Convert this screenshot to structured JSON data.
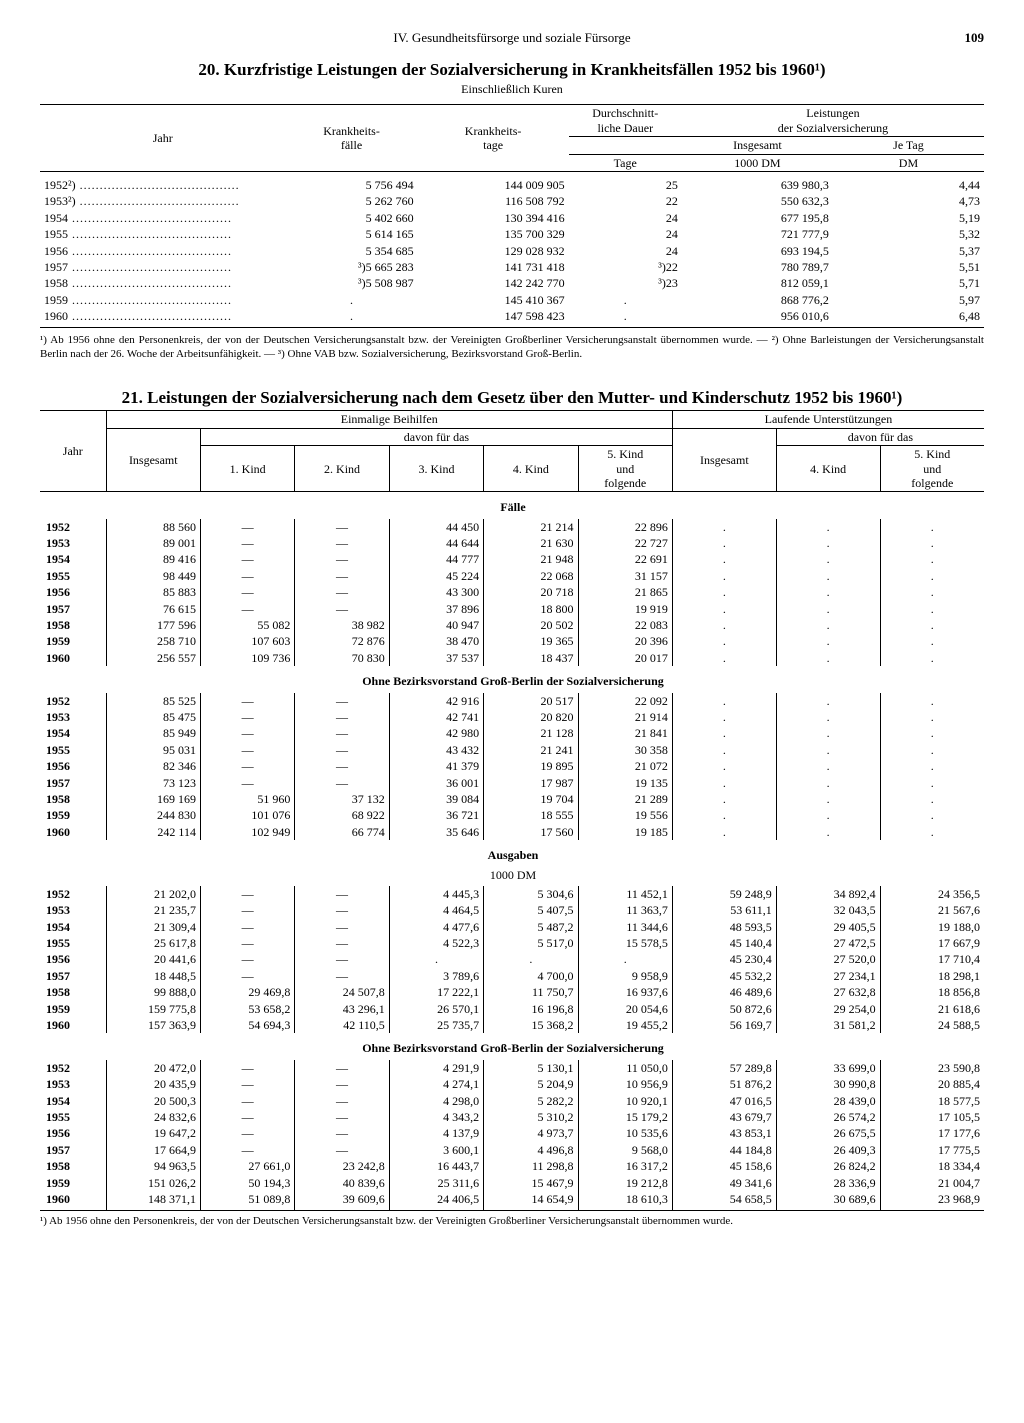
{
  "header": {
    "section": "IV. Gesundheitsfürsorge und soziale Fürsorge",
    "page": "109"
  },
  "table20": {
    "title": "20. Kurzfristige Leistungen der Sozialversicherung in Krankheitsfällen 1952 bis 1960¹)",
    "subtitle": "Einschließlich Kuren",
    "head": {
      "jahr": "Jahr",
      "faelle": "Krankheits-\nfälle",
      "tage": "Krankheits-\ntage",
      "dauer_group": "Durchschnitt-\nliche Dauer",
      "dauer_unit": "Tage",
      "leist_group": "Leistungen\nder Sozialversicherung",
      "insgesamt": "Insgesamt",
      "je_tag": "Je Tag",
      "insgesamt_unit": "1000 DM",
      "je_tag_unit": "DM"
    },
    "rows": [
      {
        "jahr": "1952²)",
        "faelle": "5 756 494",
        "tage": "144 009 905",
        "dauer": "25",
        "ins": "639 980,3",
        "je": "4,44"
      },
      {
        "jahr": "1953²)",
        "faelle": "5 262 760",
        "tage": "116 508 792",
        "dauer": "22",
        "ins": "550 632,3",
        "je": "4,73"
      },
      {
        "jahr": "1954",
        "faelle": "5 402 660",
        "tage": "130 394 416",
        "dauer": "24",
        "ins": "677 195,8",
        "je": "5,19"
      },
      {
        "jahr": "1955",
        "faelle": "5 614 165",
        "tage": "135 700 329",
        "dauer": "24",
        "ins": "721 777,9",
        "je": "5,32"
      },
      {
        "jahr": "1956",
        "faelle": "5 354 685",
        "tage": "129 028 932",
        "dauer": "24",
        "ins": "693 194,5",
        "je": "5,37"
      },
      {
        "jahr": "1957",
        "faelle": "³)5 665 283",
        "tage": "141 731 418",
        "dauer": "³)22",
        "ins": "780 789,7",
        "je": "5,51"
      },
      {
        "jahr": "1958",
        "faelle": "³)5 508 987",
        "tage": "142 242 770",
        "dauer": "³)23",
        "ins": "812 059,1",
        "je": "5,71"
      },
      {
        "jahr": "1959",
        "faelle": ".",
        "tage": "145 410 367",
        "dauer": ".",
        "ins": "868 776,2",
        "je": "5,97"
      },
      {
        "jahr": "1960",
        "faelle": ".",
        "tage": "147 598 423",
        "dauer": ".",
        "ins": "956 010,6",
        "je": "6,48"
      }
    ],
    "footnote": "¹) Ab 1956 ohne den Personenkreis, der von der Deutschen Versicherungsanstalt bzw. der Vereinigten Großberliner Versicherungsanstalt übernommen wurde. — ²) Ohne Barleistungen der Versicherungsanstalt Berlin nach der 26. Woche der Arbeitsunfähigkeit. — ³) Ohne VAB bzw. Sozialversicherung, Bezirksvorstand Groß-Berlin."
  },
  "table21": {
    "title": "21. Leistungen der Sozialversicherung nach dem Gesetz über den Mutter- und Kinderschutz 1952 bis 1960¹)",
    "head": {
      "jahr": "Jahr",
      "einmalig": "Einmalige Beihilfen",
      "laufend": "Laufende Unterstützungen",
      "davon": "davon für das",
      "insgesamt": "Insgesamt",
      "k1": "1. Kind",
      "k2": "2. Kind",
      "k3": "3. Kind",
      "k4": "4. Kind",
      "k5": "5. Kind\nund\nfolgende"
    },
    "sections": {
      "faelle": "Fälle",
      "ohne": "Ohne Bezirksvorstand Groß-Berlin der Sozialversicherung",
      "ausgaben": "Ausgaben",
      "ausgaben_unit": "1000 DM"
    },
    "faelle_a": [
      {
        "j": "1952",
        "i": "88 560",
        "k1": "—",
        "k2": "—",
        "k3": "44 450",
        "k4": "21 214",
        "k5": "22 896",
        "li": ".",
        "lk4": ".",
        "lk5": "."
      },
      {
        "j": "1953",
        "i": "89 001",
        "k1": "—",
        "k2": "—",
        "k3": "44 644",
        "k4": "21 630",
        "k5": "22 727",
        "li": ".",
        "lk4": ".",
        "lk5": "."
      },
      {
        "j": "1954",
        "i": "89 416",
        "k1": "—",
        "k2": "—",
        "k3": "44 777",
        "k4": "21 948",
        "k5": "22 691",
        "li": ".",
        "lk4": ".",
        "lk5": "."
      },
      {
        "j": "1955",
        "i": "98 449",
        "k1": "—",
        "k2": "—",
        "k3": "45 224",
        "k4": "22 068",
        "k5": "31 157",
        "li": ".",
        "lk4": ".",
        "lk5": "."
      },
      {
        "j": "1956",
        "i": "85 883",
        "k1": "—",
        "k2": "—",
        "k3": "43 300",
        "k4": "20 718",
        "k5": "21 865",
        "li": ".",
        "lk4": ".",
        "lk5": "."
      },
      {
        "j": "1957",
        "i": "76 615",
        "k1": "—",
        "k2": "—",
        "k3": "37 896",
        "k4": "18 800",
        "k5": "19 919",
        "li": ".",
        "lk4": ".",
        "lk5": "."
      },
      {
        "j": "1958",
        "i": "177 596",
        "k1": "55 082",
        "k2": "38 982",
        "k3": "40 947",
        "k4": "20 502",
        "k5": "22 083",
        "li": ".",
        "lk4": ".",
        "lk5": "."
      },
      {
        "j": "1959",
        "i": "258 710",
        "k1": "107 603",
        "k2": "72 876",
        "k3": "38 470",
        "k4": "19 365",
        "k5": "20 396",
        "li": ".",
        "lk4": ".",
        "lk5": "."
      },
      {
        "j": "1960",
        "i": "256 557",
        "k1": "109 736",
        "k2": "70 830",
        "k3": "37 537",
        "k4": "18 437",
        "k5": "20 017",
        "li": ".",
        "lk4": ".",
        "lk5": "."
      }
    ],
    "faelle_b": [
      {
        "j": "1952",
        "i": "85 525",
        "k1": "—",
        "k2": "—",
        "k3": "42 916",
        "k4": "20 517",
        "k5": "22 092",
        "li": ".",
        "lk4": ".",
        "lk5": "."
      },
      {
        "j": "1953",
        "i": "85 475",
        "k1": "—",
        "k2": "—",
        "k3": "42 741",
        "k4": "20 820",
        "k5": "21 914",
        "li": ".",
        "lk4": ".",
        "lk5": "."
      },
      {
        "j": "1954",
        "i": "85 949",
        "k1": "—",
        "k2": "—",
        "k3": "42 980",
        "k4": "21 128",
        "k5": "21 841",
        "li": ".",
        "lk4": ".",
        "lk5": "."
      },
      {
        "j": "1955",
        "i": "95 031",
        "k1": "—",
        "k2": "—",
        "k3": "43 432",
        "k4": "21 241",
        "k5": "30 358",
        "li": ".",
        "lk4": ".",
        "lk5": "."
      },
      {
        "j": "1956",
        "i": "82 346",
        "k1": "—",
        "k2": "—",
        "k3": "41 379",
        "k4": "19 895",
        "k5": "21 072",
        "li": ".",
        "lk4": ".",
        "lk5": "."
      },
      {
        "j": "1957",
        "i": "73 123",
        "k1": "—",
        "k2": "—",
        "k3": "36 001",
        "k4": "17 987",
        "k5": "19 135",
        "li": ".",
        "lk4": ".",
        "lk5": "."
      },
      {
        "j": "1958",
        "i": "169 169",
        "k1": "51 960",
        "k2": "37 132",
        "k3": "39 084",
        "k4": "19 704",
        "k5": "21 289",
        "li": ".",
        "lk4": ".",
        "lk5": "."
      },
      {
        "j": "1959",
        "i": "244 830",
        "k1": "101 076",
        "k2": "68 922",
        "k3": "36 721",
        "k4": "18 555",
        "k5": "19 556",
        "li": ".",
        "lk4": ".",
        "lk5": "."
      },
      {
        "j": "1960",
        "i": "242 114",
        "k1": "102 949",
        "k2": "66 774",
        "k3": "35 646",
        "k4": "17 560",
        "k5": "19 185",
        "li": ".",
        "lk4": ".",
        "lk5": "."
      }
    ],
    "ausgaben_a": [
      {
        "j": "1952",
        "i": "21 202,0",
        "k1": "—",
        "k2": "—",
        "k3": "4 445,3",
        "k4": "5 304,6",
        "k5": "11 452,1",
        "li": "59 248,9",
        "lk4": "34 892,4",
        "lk5": "24 356,5"
      },
      {
        "j": "1953",
        "i": "21 235,7",
        "k1": "—",
        "k2": "—",
        "k3": "4 464,5",
        "k4": "5 407,5",
        "k5": "11 363,7",
        "li": "53 611,1",
        "lk4": "32 043,5",
        "lk5": "21 567,6"
      },
      {
        "j": "1954",
        "i": "21 309,4",
        "k1": "—",
        "k2": "—",
        "k3": "4 477,6",
        "k4": "5 487,2",
        "k5": "11 344,6",
        "li": "48 593,5",
        "lk4": "29 405,5",
        "lk5": "19 188,0"
      },
      {
        "j": "1955",
        "i": "25 617,8",
        "k1": "—",
        "k2": "—",
        "k3": "4 522,3",
        "k4": "5 517,0",
        "k5": "15 578,5",
        "li": "45 140,4",
        "lk4": "27 472,5",
        "lk5": "17 667,9"
      },
      {
        "j": "1956",
        "i": "20 441,6",
        "k1": "—",
        "k2": "—",
        "k3": ".",
        "k4": ".",
        "k5": ".",
        "li": "45 230,4",
        "lk4": "27 520,0",
        "lk5": "17 710,4"
      },
      {
        "j": "1957",
        "i": "18 448,5",
        "k1": "—",
        "k2": "—",
        "k3": "3 789,6",
        "k4": "4 700,0",
        "k5": "9 958,9",
        "li": "45 532,2",
        "lk4": "27 234,1",
        "lk5": "18 298,1"
      },
      {
        "j": "1958",
        "i": "99 888,0",
        "k1": "29 469,8",
        "k2": "24 507,8",
        "k3": "17 222,1",
        "k4": "11 750,7",
        "k5": "16 937,6",
        "li": "46 489,6",
        "lk4": "27 632,8",
        "lk5": "18 856,8"
      },
      {
        "j": "1959",
        "i": "159 775,8",
        "k1": "53 658,2",
        "k2": "43 296,1",
        "k3": "26 570,1",
        "k4": "16 196,8",
        "k5": "20 054,6",
        "li": "50 872,6",
        "lk4": "29 254,0",
        "lk5": "21 618,6"
      },
      {
        "j": "1960",
        "i": "157 363,9",
        "k1": "54 694,3",
        "k2": "42 110,5",
        "k3": "25 735,7",
        "k4": "15 368,2",
        "k5": "19 455,2",
        "li": "56 169,7",
        "lk4": "31 581,2",
        "lk5": "24 588,5"
      }
    ],
    "ausgaben_b": [
      {
        "j": "1952",
        "i": "20 472,0",
        "k1": "—",
        "k2": "—",
        "k3": "4 291,9",
        "k4": "5 130,1",
        "k5": "11 050,0",
        "li": "57 289,8",
        "lk4": "33 699,0",
        "lk5": "23 590,8"
      },
      {
        "j": "1953",
        "i": "20 435,9",
        "k1": "—",
        "k2": "—",
        "k3": "4 274,1",
        "k4": "5 204,9",
        "k5": "10 956,9",
        "li": "51 876,2",
        "lk4": "30 990,8",
        "lk5": "20 885,4"
      },
      {
        "j": "1954",
        "i": "20 500,3",
        "k1": "—",
        "k2": "—",
        "k3": "4 298,0",
        "k4": "5 282,2",
        "k5": "10 920,1",
        "li": "47 016,5",
        "lk4": "28 439,0",
        "lk5": "18 577,5"
      },
      {
        "j": "1955",
        "i": "24 832,6",
        "k1": "—",
        "k2": "—",
        "k3": "4 343,2",
        "k4": "5 310,2",
        "k5": "15 179,2",
        "li": "43 679,7",
        "lk4": "26 574,2",
        "lk5": "17 105,5"
      },
      {
        "j": "1956",
        "i": "19 647,2",
        "k1": "—",
        "k2": "—",
        "k3": "4 137,9",
        "k4": "4 973,7",
        "k5": "10 535,6",
        "li": "43 853,1",
        "lk4": "26 675,5",
        "lk5": "17 177,6"
      },
      {
        "j": "1957",
        "i": "17 664,9",
        "k1": "—",
        "k2": "—",
        "k3": "3 600,1",
        "k4": "4 496,8",
        "k5": "9 568,0",
        "li": "44 184,8",
        "lk4": "26 409,3",
        "lk5": "17 775,5"
      },
      {
        "j": "1958",
        "i": "94 963,5",
        "k1": "27 661,0",
        "k2": "23 242,8",
        "k3": "16 443,7",
        "k4": "11 298,8",
        "k5": "16 317,2",
        "li": "45 158,6",
        "lk4": "26 824,2",
        "lk5": "18 334,4"
      },
      {
        "j": "1959",
        "i": "151 026,2",
        "k1": "50 194,3",
        "k2": "40 839,6",
        "k3": "25 311,6",
        "k4": "15 467,9",
        "k5": "19 212,8",
        "li": "49 341,6",
        "lk4": "28 336,9",
        "lk5": "21 004,7"
      },
      {
        "j": "1960",
        "i": "148 371,1",
        "k1": "51 089,8",
        "k2": "39 609,6",
        "k3": "24 406,5",
        "k4": "14 654,9",
        "k5": "18 610,3",
        "li": "54 658,5",
        "lk4": "30 689,6",
        "lk5": "23 968,9"
      }
    ],
    "footnote": "¹) Ab 1956 ohne den Personenkreis, der von der Deutschen Versicherungsanstalt bzw. der Vereinigten Großberliner Versicherungsanstalt übernommen wurde."
  }
}
